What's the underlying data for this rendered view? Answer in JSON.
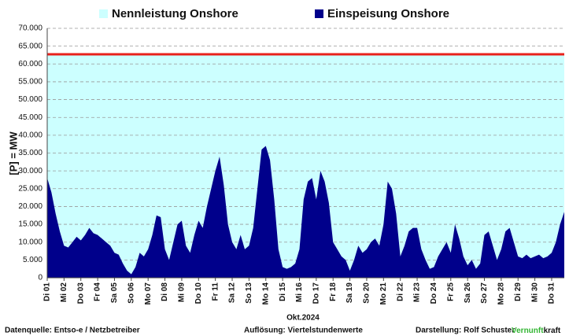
{
  "chart_data": {
    "type": "area",
    "y_label": "[P] = MW",
    "x_label": "Okt.2024",
    "categories": [
      "Di 01",
      null,
      null,
      null,
      "Mi 02",
      null,
      null,
      null,
      "Do 03",
      null,
      null,
      null,
      "Fr 04",
      null,
      null,
      null,
      "Sa 05",
      null,
      null,
      null,
      "So 06",
      null,
      null,
      null,
      "Mo 07",
      null,
      null,
      null,
      "Di 08",
      null,
      null,
      null,
      "Mi 09",
      null,
      null,
      null,
      "Do 10",
      null,
      null,
      null,
      "Fr 11",
      null,
      null,
      null,
      "Sa 12",
      null,
      null,
      null,
      "So 13",
      null,
      null,
      null,
      "Mo 14",
      null,
      null,
      null,
      "Di 15",
      null,
      null,
      null,
      "Mi 16",
      null,
      null,
      null,
      "Do 17",
      null,
      null,
      null,
      "Fr 18",
      null,
      null,
      null,
      "Sa 19",
      null,
      null,
      null,
      "So 20",
      null,
      null,
      null,
      "Mo 21",
      null,
      null,
      null,
      "Di 22",
      null,
      null,
      null,
      "Mi 23",
      null,
      null,
      null,
      "Do 24",
      null,
      null,
      null,
      "Fr 25",
      null,
      null,
      null,
      "Sa 26",
      null,
      null,
      null,
      "So 27",
      null,
      null,
      null,
      "Mo 28",
      null,
      null,
      null,
      "Di 29",
      null,
      null,
      null,
      "Mi 30",
      null,
      null,
      null,
      "Do 31",
      null,
      null,
      null
    ],
    "series": [
      {
        "name": "Nennleistung Onshore",
        "color": "#ccffff",
        "line_color": "#e8211b",
        "values": [
          62700,
          62700,
          62700,
          62700,
          62700,
          62700,
          62700,
          62700,
          62700,
          62700,
          62700,
          62700,
          62700,
          62700,
          62700,
          62700,
          62700,
          62700,
          62700,
          62700,
          62700,
          62700,
          62700,
          62700,
          62700,
          62700,
          62700,
          62700,
          62700,
          62700,
          62700,
          62700,
          62700,
          62700,
          62700,
          62700,
          62700,
          62700,
          62700,
          62700,
          62700,
          62700,
          62700,
          62700,
          62700,
          62700,
          62700,
          62700,
          62700,
          62700,
          62700,
          62700,
          62700,
          62700,
          62700,
          62700,
          62700,
          62700,
          62700,
          62700,
          62700,
          62700,
          62700,
          62700,
          62700,
          62700,
          62700,
          62700,
          62700,
          62700,
          62700,
          62700,
          62700,
          62700,
          62700,
          62700,
          62700,
          62700,
          62700,
          62700,
          62700,
          62700,
          62700,
          62700,
          62700,
          62700,
          62700,
          62700,
          62700,
          62700,
          62700,
          62700,
          62700,
          62700,
          62700,
          62700,
          62700,
          62700,
          62700,
          62700,
          62700,
          62700,
          62700,
          62700,
          62700,
          62700,
          62700,
          62700,
          62700,
          62700,
          62700,
          62700,
          62700,
          62700,
          62700,
          62700,
          62700,
          62700,
          62700,
          62700,
          62700,
          62700,
          62700,
          62700
        ]
      },
      {
        "name": "Einspeisung Onshore",
        "color": "#00008b",
        "values": [
          28000,
          24000,
          18000,
          13000,
          9000,
          8500,
          10000,
          11500,
          10500,
          12000,
          14000,
          12500,
          12000,
          11000,
          10000,
          9000,
          7000,
          6500,
          4000,
          2000,
          1000,
          3000,
          7000,
          6000,
          8000,
          12000,
          17500,
          17000,
          8000,
          5000,
          10000,
          15000,
          16000,
          9000,
          7000,
          12000,
          16000,
          14000,
          20000,
          25000,
          30000,
          34000,
          26000,
          15000,
          10000,
          8000,
          12000,
          8000,
          9000,
          14000,
          25000,
          36000,
          37000,
          33000,
          22000,
          8000,
          3000,
          2500,
          3000,
          4000,
          8000,
          22000,
          27000,
          28000,
          22000,
          30000,
          27000,
          21000,
          10000,
          8000,
          6000,
          5000,
          2000,
          5000,
          9000,
          7000,
          8000,
          10000,
          11000,
          9000,
          15000,
          27000,
          25000,
          18000,
          6000,
          9000,
          13000,
          14000,
          14000,
          8000,
          5000,
          2500,
          3000,
          6000,
          8000,
          10000,
          7000,
          15000,
          11000,
          6000,
          3500,
          5000,
          2500,
          4000,
          12000,
          13000,
          9000,
          5000,
          8000,
          13000,
          14000,
          10000,
          6000,
          5500,
          6500,
          5500,
          6000,
          6500,
          5500,
          6000,
          7000,
          10000,
          15000,
          18500
        ]
      }
    ],
    "ylim": [
      0,
      70000
    ],
    "yticks": [
      0,
      {
        "value": 5000,
        "label": "5.000"
      },
      {
        "value": 10000,
        "label": "10.000"
      },
      {
        "value": 15000,
        "label": "15.000"
      },
      {
        "value": 20000,
        "label": "20.000"
      },
      {
        "value": 25000,
        "label": "25.000"
      },
      {
        "value": 30000,
        "label": "30.000"
      },
      {
        "value": 35000,
        "label": "35.000"
      },
      {
        "value": 40000,
        "label": "40.000"
      },
      {
        "value": 45000,
        "label": "45.000"
      },
      {
        "value": 50000,
        "label": "50.000"
      },
      {
        "value": 55000,
        "label": "55.000"
      },
      {
        "value": 60000,
        "label": "60.000"
      },
      {
        "value": 65000,
        "label": "65.000"
      },
      {
        "value": 70000,
        "label": "70.000"
      }
    ],
    "grid": true
  },
  "footer": {
    "source": "Datenquelle:  Entso-e  / Netzbetreiber",
    "resolution": "Auflösung: Viertelstundenwerte",
    "author": "Darstellung:  Rolf Schuster",
    "brand": [
      "Vernunft",
      "kraft"
    ],
    "brand_color": "#33b533"
  }
}
